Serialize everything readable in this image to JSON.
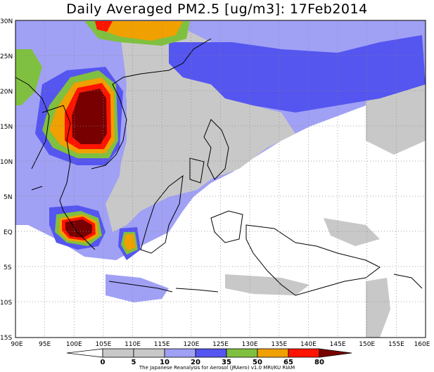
{
  "title": "Daily Averaged PM2.5 [ug/m3]: 17Feb2014",
  "map": {
    "lat_labels": [
      "30N",
      "25N",
      "20N",
      "15N",
      "10N",
      "5N",
      "EQ",
      "5S",
      "10S",
      "15S"
    ],
    "lon_labels": [
      "90E",
      "95E",
      "100E",
      "105E",
      "110E",
      "115E",
      "120E",
      "125E",
      "130E",
      "135E",
      "140E",
      "145E",
      "150E",
      "155E",
      "160E"
    ],
    "extent": {
      "lon_min": 90,
      "lon_max": 160,
      "lat_min": -15,
      "lat_max": 30
    },
    "gridlines": "dotted"
  },
  "colorbar": {
    "levels": [
      "0",
      "5",
      "10",
      "20",
      "35",
      "50",
      "65",
      "80"
    ],
    "colors": [
      "#ffffff",
      "#c8c8c8",
      "#a0a0f5",
      "#5555f0",
      "#80c040",
      "#f0a000",
      "#ff1400",
      "#780000"
    ],
    "label_colors": [
      "#ffffff",
      "#c8c8c8",
      "#a0a0f5",
      "#5555f0",
      "#80c040",
      "#f0a000",
      "#ff1400",
      "#780000"
    ]
  },
  "credit": "The Japanese Reanalysis for Aerosol (JRAero) v1.0 MRI/KU RIAM"
}
